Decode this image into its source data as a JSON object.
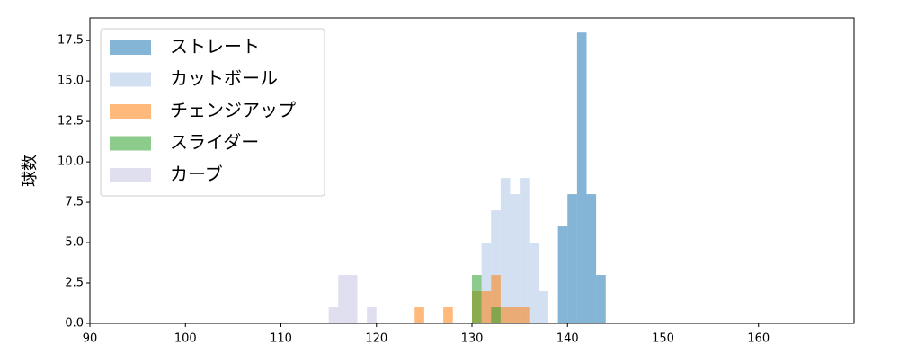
{
  "chart_data": {
    "type": "histogram",
    "y_label": "球数",
    "xlim": [
      90,
      170
    ],
    "ylim": [
      0,
      18.9
    ],
    "xticks": [
      90,
      100,
      110,
      120,
      130,
      140,
      150,
      160
    ],
    "yticks": [
      {
        "value": 0,
        "label": "0.0"
      },
      {
        "value": 2.5,
        "label": "2.5"
      },
      {
        "value": 5,
        "label": "5.0"
      },
      {
        "value": 7.5,
        "label": "7.5"
      },
      {
        "value": 10,
        "label": "10.0"
      },
      {
        "value": 12.5,
        "label": "12.5"
      },
      {
        "value": 15,
        "label": "15.0"
      },
      {
        "value": 17.5,
        "label": "17.5"
      }
    ],
    "legend": "upper left",
    "alpha": 0.55,
    "series": [
      {
        "name": "ストレート",
        "color": "#1f77b4",
        "bins": [
          139,
          140,
          141,
          142,
          143,
          144
        ],
        "values": [
          6,
          8,
          18,
          8,
          3
        ]
      },
      {
        "name": "カットボール",
        "color": "#aec7e8",
        "bins": [
          131,
          132,
          133,
          134,
          135,
          136,
          137,
          138
        ],
        "values": [
          5,
          7,
          9,
          8,
          9,
          5,
          2
        ]
      },
      {
        "name": "チェンジアップ",
        "color": "#ff7f0e",
        "bins": [
          124,
          125,
          126,
          127,
          128,
          129,
          130,
          131,
          132,
          133,
          134,
          135,
          136
        ],
        "values": [
          1,
          0,
          0,
          1,
          0,
          0,
          2,
          2,
          3,
          1,
          1,
          1
        ]
      },
      {
        "name": "スライダー",
        "color": "#2ca02c",
        "bins": [
          130,
          131,
          132,
          133
        ],
        "values": [
          3,
          0,
          1
        ]
      },
      {
        "name": "カーブ",
        "color": "#c5c5e3",
        "bins": [
          115,
          116,
          117,
          118,
          119,
          120
        ],
        "values": [
          1,
          3,
          3,
          0,
          1
        ]
      }
    ]
  }
}
